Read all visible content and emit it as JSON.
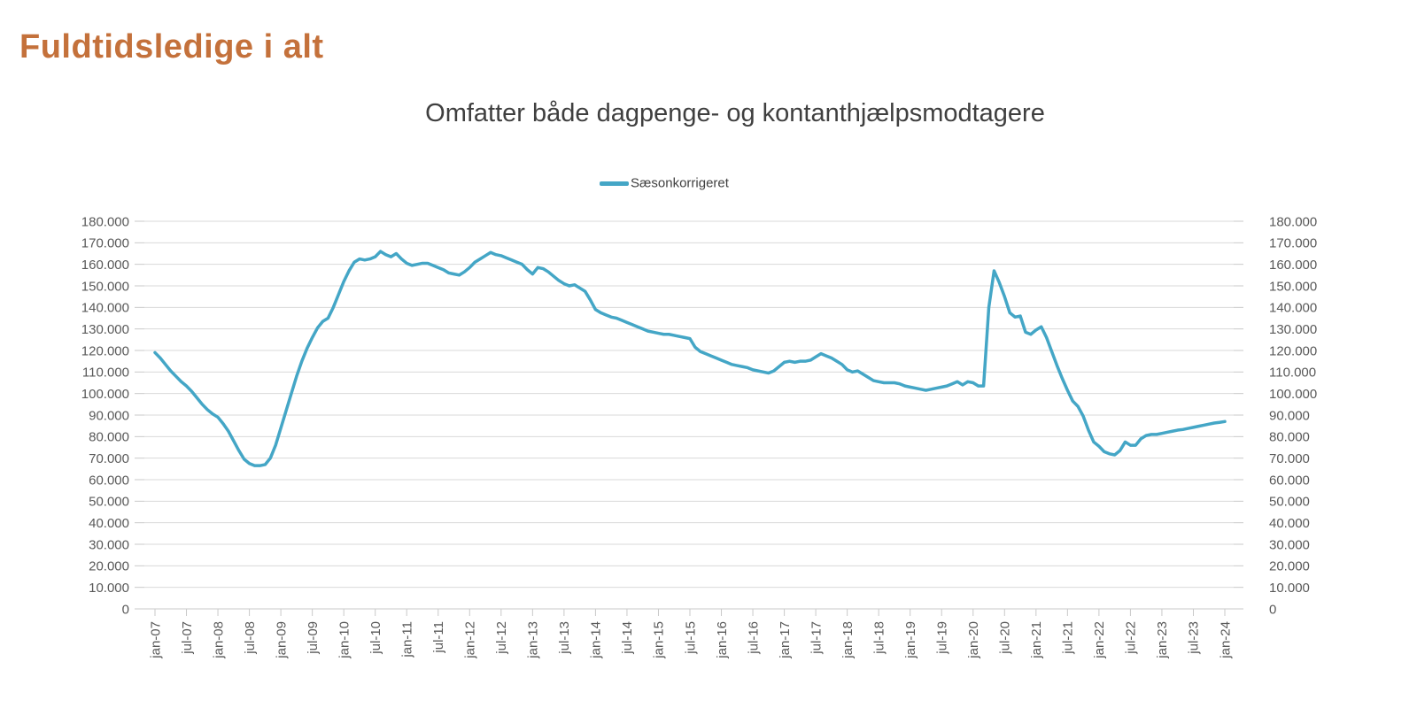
{
  "page_title": "Fuldtidsledige i alt",
  "colors": {
    "title": "#C4713B",
    "subtitle_text": "#3F3F3F",
    "axis_text": "#595959",
    "gridline": "#D9D9D9",
    "tick": "#C9C9C9",
    "accent_line": "#44A6C6"
  },
  "chart_data": {
    "type": "line",
    "title": "Omfatter både dagpenge- og kontanthjælpsmodtagere",
    "legend": [
      {
        "label": "Sæsonkorrigeret",
        "color": "#44A6C6"
      }
    ],
    "legend_position": "top",
    "grid": true,
    "x_unit": "month",
    "x_start": "jan-07",
    "x_end": "jan-24",
    "points_per_tick": 6,
    "x_tick_labels": [
      "jan-07",
      "jul-07",
      "jan-08",
      "jul-08",
      "jan-09",
      "jul-09",
      "jan-10",
      "jul-10",
      "jan-11",
      "jul-11",
      "jan-12",
      "jul-12",
      "jan-13",
      "jul-13",
      "jan-14",
      "jul-14",
      "jan-15",
      "jul-15",
      "jan-16",
      "jul-16",
      "jan-17",
      "jul-17",
      "jan-18",
      "jul-18",
      "jan-19",
      "jul-19",
      "jan-20",
      "jul-20",
      "jan-21",
      "jul-21",
      "jan-22",
      "jul-22",
      "jan-23",
      "jul-23",
      "jan-24"
    ],
    "y_axis": {
      "min": 0,
      "max": 180000,
      "step": 10000,
      "sides": [
        "left",
        "right"
      ],
      "tick_labels": [
        "0",
        "10.000",
        "20.000",
        "30.000",
        "40.000",
        "50.000",
        "60.000",
        "70.000",
        "80.000",
        "90.000",
        "100.000",
        "110.000",
        "120.000",
        "130.000",
        "140.000",
        "150.000",
        "160.000",
        "170.000",
        "180.000"
      ]
    },
    "series": [
      {
        "name": "Sæsonkorrigeret",
        "values": [
          119000,
          116500,
          113500,
          110500,
          108000,
          105500,
          103500,
          101000,
          98000,
          95000,
          92500,
          90500,
          89000,
          86000,
          82500,
          78000,
          73500,
          69500,
          67500,
          66500,
          66500,
          67000,
          70000,
          76000,
          84000,
          92000,
          100000,
          108000,
          115000,
          121000,
          126000,
          130500,
          133500,
          135000,
          140000,
          146000,
          152000,
          157000,
          161000,
          162500,
          162000,
          162500,
          163500,
          166000,
          164500,
          163500,
          165000,
          162500,
          160500,
          159500,
          160000,
          160500,
          160500,
          159500,
          158500,
          157500,
          156000,
          155500,
          155000,
          156500,
          158500,
          161000,
          162500,
          164000,
          165500,
          164500,
          164000,
          163000,
          162000,
          161000,
          160000,
          157500,
          155500,
          158500,
          158000,
          156500,
          154500,
          152500,
          151000,
          150000,
          150500,
          149000,
          147500,
          143500,
          139000,
          137500,
          136500,
          135500,
          135000,
          134000,
          133000,
          132000,
          131000,
          130000,
          129000,
          128500,
          128000,
          127500,
          127500,
          127000,
          126500,
          126000,
          125500,
          121500,
          119500,
          118500,
          117500,
          116500,
          115500,
          114500,
          113500,
          113000,
          112500,
          112000,
          111000,
          110500,
          110000,
          109500,
          110500,
          112500,
          114500,
          115000,
          114500,
          115000,
          115000,
          115500,
          117000,
          118500,
          117500,
          116500,
          115000,
          113500,
          111000,
          110000,
          110500,
          109000,
          107500,
          106000,
          105500,
          105000,
          105000,
          105000,
          104500,
          103500,
          103000,
          102500,
          102000,
          101500,
          102000,
          102500,
          103000,
          103500,
          104500,
          105500,
          104000,
          105500,
          105000,
          103500,
          103500,
          140000,
          157000,
          151500,
          145000,
          137500,
          135500,
          136000,
          128500,
          127500,
          129500,
          131000,
          126000,
          119500,
          113000,
          107000,
          101500,
          96500,
          94000,
          89500,
          83000,
          77500,
          75500,
          73000,
          72000,
          71500,
          73500,
          77500,
          76000,
          76000,
          79000,
          80500,
          81000,
          81000,
          81500,
          82000,
          82500,
          83000,
          83300,
          83800,
          84300,
          84800,
          85300,
          85800,
          86300,
          86600,
          87000
        ]
      }
    ]
  }
}
